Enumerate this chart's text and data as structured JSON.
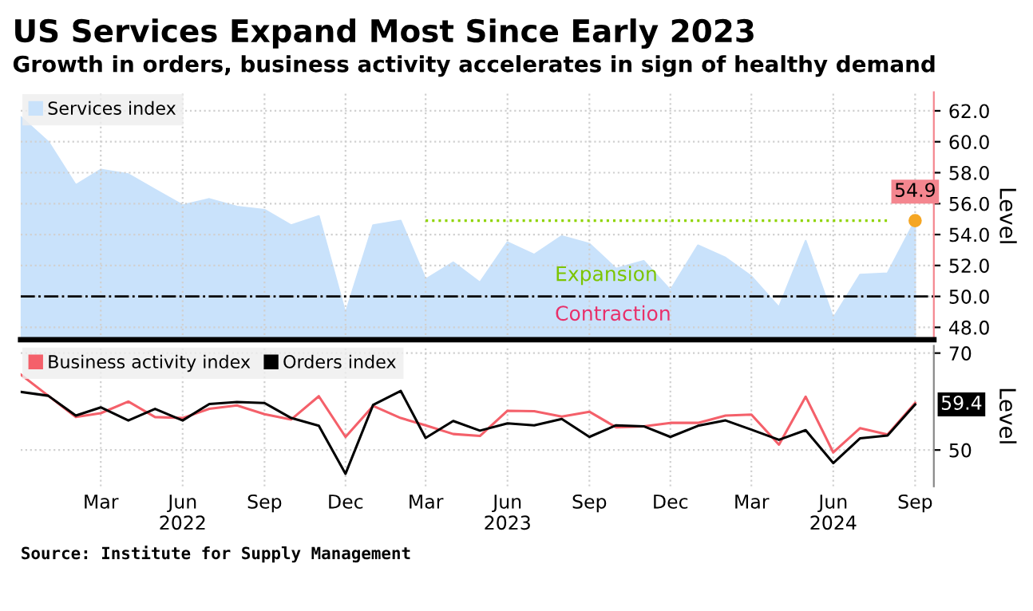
{
  "chart_data": [
    {
      "type": "area",
      "title": "US Services Expand Most Since Early 2023",
      "subtitle": "Growth in orders, business activity accelerates in sign of healthy demand",
      "ylabel": "Level",
      "x": [
        "2021-12",
        "2022-01",
        "2022-02",
        "2022-03",
        "2022-04",
        "2022-05",
        "2022-06",
        "2022-07",
        "2022-08",
        "2022-09",
        "2022-10",
        "2022-11",
        "2022-12",
        "2023-01",
        "2023-02",
        "2023-03",
        "2023-04",
        "2023-05",
        "2023-06",
        "2023-07",
        "2023-08",
        "2023-09",
        "2023-10",
        "2023-11",
        "2023-12",
        "2024-01",
        "2024-02",
        "2024-03",
        "2024-04",
        "2024-05",
        "2024-06",
        "2024-07",
        "2024-08",
        "2024-09"
      ],
      "series": [
        {
          "name": "Services index",
          "color": "#c9e2fb",
          "values": [
            61.6,
            60.0,
            57.2,
            58.2,
            57.9,
            56.9,
            55.9,
            56.3,
            55.8,
            55.6,
            54.6,
            55.2,
            48.9,
            54.6,
            54.9,
            51.1,
            52.2,
            50.9,
            53.5,
            52.7,
            53.9,
            53.4,
            51.8,
            52.3,
            50.4,
            53.3,
            52.5,
            51.3,
            49.3,
            53.6,
            48.6,
            51.4,
            51.5,
            54.9
          ],
          "value_labels": [
            null,
            null,
            null,
            null,
            null,
            null,
            null,
            null,
            null,
            null,
            null,
            null,
            null,
            null,
            null,
            null,
            null,
            null,
            null,
            null,
            null,
            null,
            null,
            null,
            null,
            null,
            null,
            null,
            null,
            null,
            null,
            null,
            null,
            "54.9"
          ]
        },
        {
          "type": "line",
          "color": "#8fd400",
          "line_style": "dotted",
          "x": [
            "2023-03",
            "2024-08"
          ],
          "values": [
            54.9,
            54.9
          ]
        }
      ],
      "ref_lines": [
        {
          "axis": "y",
          "value": 50,
          "color": "#000000",
          "line_style": "dashdot"
        }
      ],
      "annotations": [
        "Expansion",
        "Contraction"
      ],
      "xlim": [
        "2021-12-01",
        "2024-09-22"
      ],
      "ylim": [
        47.2,
        63.2
      ],
      "yticks": [
        {
          "value": 48,
          "label": "48.0"
        },
        {
          "value": 50,
          "label": "50.0"
        },
        {
          "value": 52,
          "label": "52.0"
        },
        {
          "value": 54,
          "label": "54.0"
        },
        {
          "value": 56,
          "label": "56.0"
        },
        {
          "value": 58,
          "label": "58.0"
        },
        {
          "value": 60,
          "label": "60.0"
        },
        {
          "value": 62,
          "label": "62.0"
        }
      ],
      "xticks": [
        "2022-03",
        "2022-06",
        "2022-09",
        "2022-12",
        "2023-03",
        "2023-06",
        "2023-09",
        "2023-12",
        "2024-03",
        "2024-06",
        "2024-09"
      ],
      "tick_labels": "y",
      "grid": true,
      "legend": "top left"
    },
    {
      "type": "line",
      "ylabel": "Level",
      "x": [
        "2021-12",
        "2022-01",
        "2022-02",
        "2022-03",
        "2022-04",
        "2022-05",
        "2022-06",
        "2022-07",
        "2022-08",
        "2022-09",
        "2022-10",
        "2022-11",
        "2022-12",
        "2023-01",
        "2023-02",
        "2023-03",
        "2023-04",
        "2023-05",
        "2023-06",
        "2023-07",
        "2023-08",
        "2023-09",
        "2023-10",
        "2023-11",
        "2023-12",
        "2024-01",
        "2024-02",
        "2024-03",
        "2024-04",
        "2024-05",
        "2024-06",
        "2024-07",
        "2024-08",
        "2024-09"
      ],
      "series": [
        {
          "name": "Business activity index",
          "color": "#f4606a",
          "values": [
            65.6,
            61.2,
            56.8,
            57.6,
            60.0,
            56.8,
            56.6,
            58.5,
            59.2,
            57.4,
            56.3,
            61.1,
            52.7,
            59.1,
            56.6,
            55.1,
            53.3,
            52.9,
            58.1,
            58.0,
            56.9,
            57.9,
            54.7,
            54.9,
            55.6,
            55.6,
            57.1,
            57.3,
            51.1,
            61.0,
            49.5,
            54.5,
            53.2,
            59.7
          ]
        },
        {
          "name": "Orders index",
          "color": "#000000",
          "values": [
            62.0,
            61.2,
            57.1,
            58.8,
            56.1,
            58.5,
            56.1,
            59.5,
            59.9,
            59.7,
            56.6,
            55.0,
            45.1,
            59.3,
            62.2,
            52.5,
            56.0,
            54.0,
            55.5,
            55.1,
            56.4,
            52.7,
            55.1,
            54.9,
            52.7,
            55.0,
            56.1,
            54.2,
            52.1,
            54.1,
            47.3,
            52.4,
            53.0,
            59.4
          ],
          "value_labels": [
            null,
            null,
            null,
            null,
            null,
            null,
            null,
            null,
            null,
            null,
            null,
            null,
            null,
            null,
            null,
            null,
            null,
            null,
            null,
            null,
            null,
            null,
            null,
            null,
            null,
            null,
            null,
            null,
            null,
            null,
            null,
            null,
            null,
            "59.4"
          ]
        }
      ],
      "annotations": [
        "Source: Institute for Supply Management"
      ],
      "xlim": [
        "2021-12-01",
        "2024-09-22"
      ],
      "ylim": [
        42.5,
        71.5
      ],
      "yticks": [
        50,
        70
      ],
      "xticks": [
        {
          "value": "2022-03",
          "label": "Mar"
        },
        {
          "value": "2022-06",
          "label": "Jun\n2022"
        },
        {
          "value": "2022-09",
          "label": "Sep"
        },
        {
          "value": "2022-12",
          "label": "Dec"
        },
        {
          "value": "2023-03",
          "label": "Mar"
        },
        {
          "value": "2023-06",
          "label": "Jun\n2023"
        },
        {
          "value": "2023-09",
          "label": "Sep"
        },
        {
          "value": "2023-12",
          "label": "Dec"
        },
        {
          "value": "2024-03",
          "label": "Mar"
        },
        {
          "value": "2024-06",
          "label": "Jun\n2024"
        },
        {
          "value": "2024-09",
          "label": "Sep"
        }
      ],
      "grid": true,
      "legend": "top left"
    }
  ]
}
